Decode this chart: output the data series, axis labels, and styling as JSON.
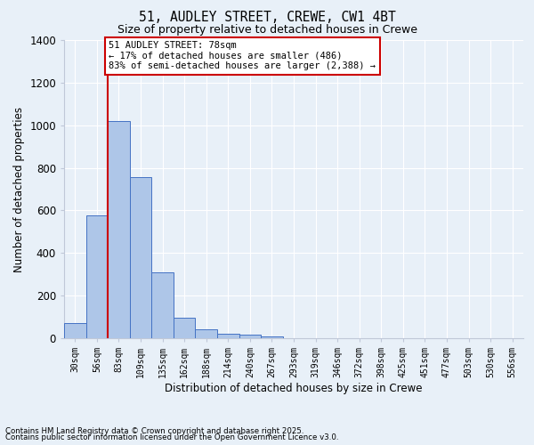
{
  "title1": "51, AUDLEY STREET, CREWE, CW1 4BT",
  "title2": "Size of property relative to detached houses in Crewe",
  "xlabel": "Distribution of detached houses by size in Crewe",
  "ylabel": "Number of detached properties",
  "categories": [
    "30sqm",
    "56sqm",
    "83sqm",
    "109sqm",
    "135sqm",
    "162sqm",
    "188sqm",
    "214sqm",
    "240sqm",
    "267sqm",
    "293sqm",
    "319sqm",
    "346sqm",
    "372sqm",
    "398sqm",
    "425sqm",
    "451sqm",
    "477sqm",
    "503sqm",
    "530sqm",
    "556sqm"
  ],
  "values": [
    70,
    578,
    1020,
    758,
    310,
    97,
    40,
    22,
    15,
    10,
    0,
    0,
    0,
    0,
    0,
    0,
    0,
    0,
    0,
    0,
    0
  ],
  "bar_color": "#aec6e8",
  "bar_edge_color": "#4472c4",
  "bg_color": "#e8f0f8",
  "grid_color": "#ffffff",
  "red_line_x": 1.5,
  "annotation_text": "51 AUDLEY STREET: 78sqm\n← 17% of detached houses are smaller (486)\n83% of semi-detached houses are larger (2,388) →",
  "annotation_box_color": "#ffffff",
  "annotation_box_edge": "#cc0000",
  "ylim": [
    0,
    1400
  ],
  "yticks": [
    0,
    200,
    400,
    600,
    800,
    1000,
    1200,
    1400
  ],
  "footer1": "Contains HM Land Registry data © Crown copyright and database right 2025.",
  "footer2": "Contains public sector information licensed under the Open Government Licence v3.0."
}
